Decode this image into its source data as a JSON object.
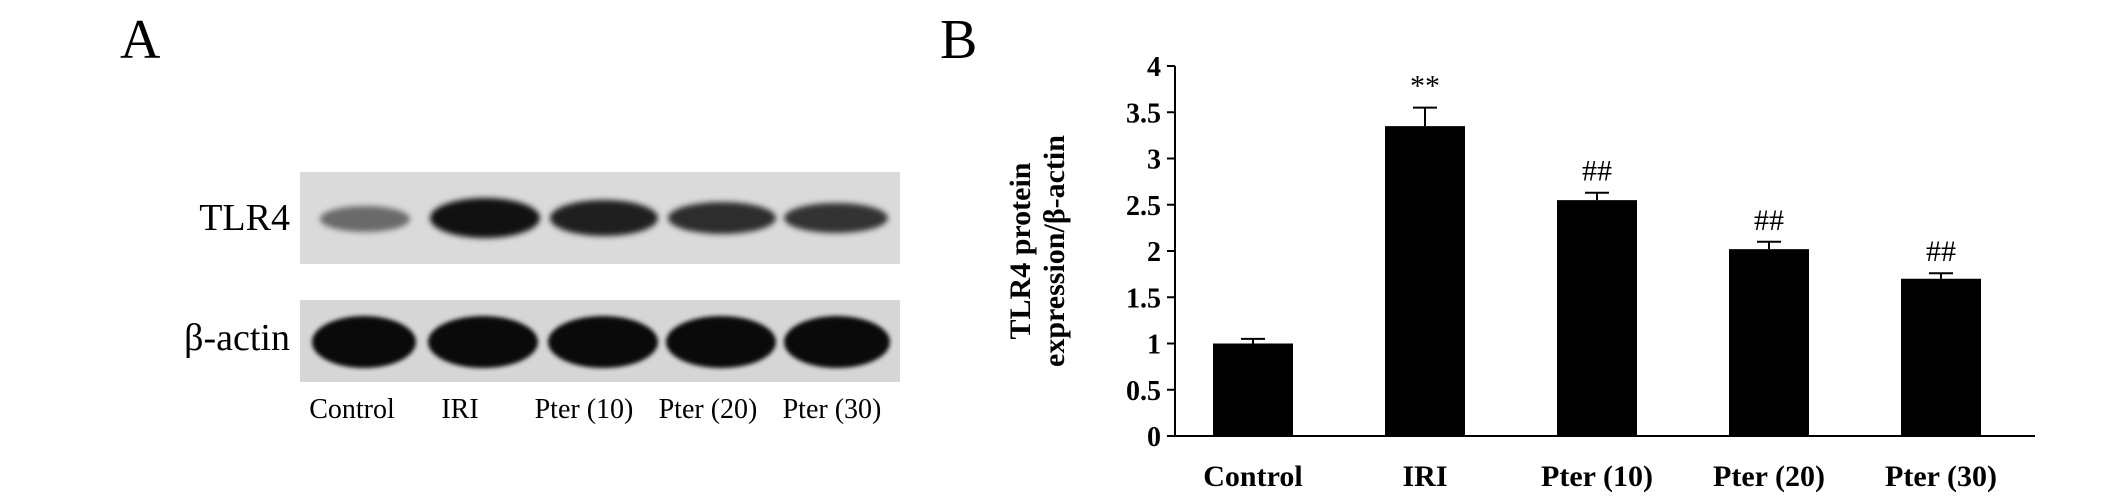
{
  "panel_a": {
    "letter": "A",
    "rows": [
      "TLR4",
      "β-actin"
    ],
    "lanes": [
      "Control",
      "IRI",
      "Pter (10)",
      "Pter (20)",
      "Pter (30)"
    ]
  },
  "panel_b": {
    "letter": "B"
  },
  "chart_data": {
    "type": "bar",
    "categories": [
      "Control",
      "IRI",
      "Pter (10)",
      "Pter (20)",
      "Pter (30)"
    ],
    "values": [
      1.0,
      3.35,
      2.55,
      2.02,
      1.7
    ],
    "errors": [
      0.05,
      0.2,
      0.08,
      0.08,
      0.06
    ],
    "annotations": [
      "",
      "**",
      "##",
      "##",
      "##"
    ],
    "xlabel": "",
    "ylabel": "TLR4 protein expression/β-actin",
    "ylabel_lines": [
      "TLR4 protein",
      "expression/β-actin"
    ],
    "ylim": [
      0,
      4
    ],
    "yticks": [
      "0",
      "0.5",
      "1",
      "1.5",
      "2",
      "2.5",
      "3",
      "3.5",
      "4"
    ],
    "bar_color": "#000000",
    "grid": false
  }
}
